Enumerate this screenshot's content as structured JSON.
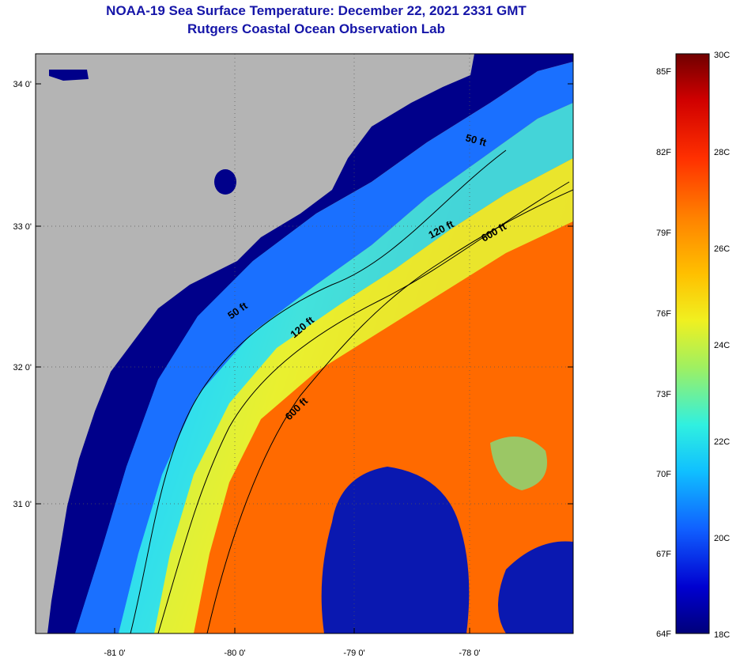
{
  "header": {
    "title": "NOAA-19 Sea Surface Temperature:  December 22, 2021 2331 GMT",
    "subtitle": "Rutgers Coastal Ocean Observation Lab"
  },
  "axes": {
    "lat_labels": [
      "34 0'",
      "33 0'",
      "32 0'",
      "31 0'"
    ],
    "lon_labels": [
      "-81 0'",
      "-80 0'",
      "-79 0'",
      "-78 0'"
    ]
  },
  "contours": {
    "c50": "50 ft",
    "c120": "120 ft",
    "c600": "600 ft"
  },
  "colorbar": {
    "fahrenheit": [
      "85F",
      "82F",
      "79F",
      "76F",
      "73F",
      "70F",
      "67F",
      "64F"
    ],
    "celsius": [
      "30C",
      "28C",
      "26C",
      "24C",
      "22C",
      "20C",
      "18C"
    ],
    "range_c": [
      18,
      30
    ],
    "range_f": [
      64,
      85
    ]
  },
  "colors": {
    "land": "#b4b4b4",
    "title": "#1515a8",
    "cold": "#00008a",
    "warm": "#ff6a00"
  }
}
